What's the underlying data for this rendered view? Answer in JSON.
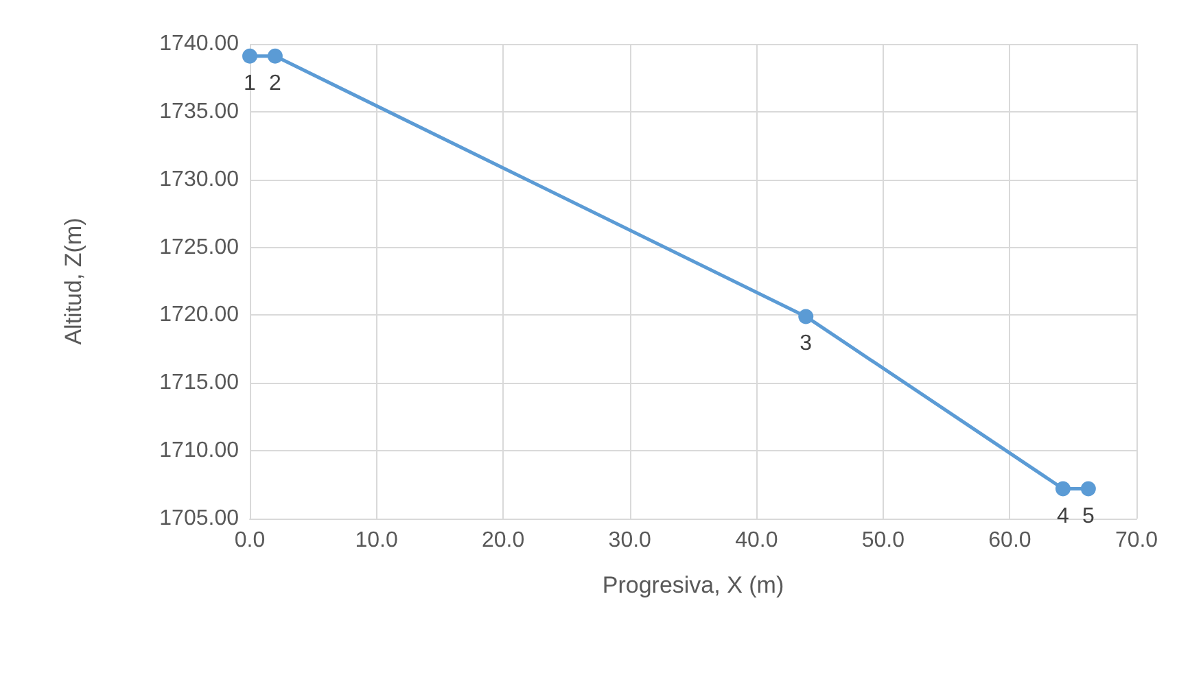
{
  "chart_data": {
    "type": "line",
    "xlabel": "Progresiva, X (m)",
    "ylabel": "Altitud, Z(m)",
    "x": [
      0,
      2.0,
      43.9,
      64.2,
      66.2
    ],
    "series": [
      {
        "color": "#5b9bd5",
        "values": [
          1739.1,
          1739.1,
          1719.9,
          1707.2,
          1707.2
        ]
      }
    ],
    "xlim": [
      0,
      70
    ],
    "ylim": [
      1705,
      1740
    ],
    "xticks": [
      {
        "value": 0,
        "label": "0.0"
      },
      {
        "value": 10,
        "label": "10.0"
      },
      {
        "value": 20,
        "label": "20.0"
      },
      {
        "value": 30,
        "label": "30.0"
      },
      {
        "value": 40,
        "label": "40.0"
      },
      {
        "value": 50,
        "label": "50.0"
      },
      {
        "value": 60,
        "label": "60.0"
      },
      {
        "value": 70,
        "label": "70.0"
      }
    ],
    "yticks": [
      {
        "value": 1705,
        "label": "1705.00"
      },
      {
        "value": 1710,
        "label": "1710.00"
      },
      {
        "value": 1715,
        "label": "1715.00"
      },
      {
        "value": 1720,
        "label": "1720.00"
      },
      {
        "value": 1725,
        "label": "1725.00"
      },
      {
        "value": 1730,
        "label": "1730.00"
      },
      {
        "value": 1735,
        "label": "1735.00"
      },
      {
        "value": 1740,
        "label": "1740.00"
      }
    ],
    "annotations": [
      {
        "text": "1",
        "x": 0,
        "y": 1739.1
      },
      {
        "text": "2",
        "x": 2.0,
        "y": 1739.1
      },
      {
        "text": "3",
        "x": 43.9,
        "y": 1719.9
      },
      {
        "text": "4",
        "x": 64.2,
        "y": 1707.2
      },
      {
        "text": "5",
        "x": 66.2,
        "y": 1707.2
      }
    ],
    "grid": true,
    "marker": "circle",
    "line_style": "solid"
  }
}
